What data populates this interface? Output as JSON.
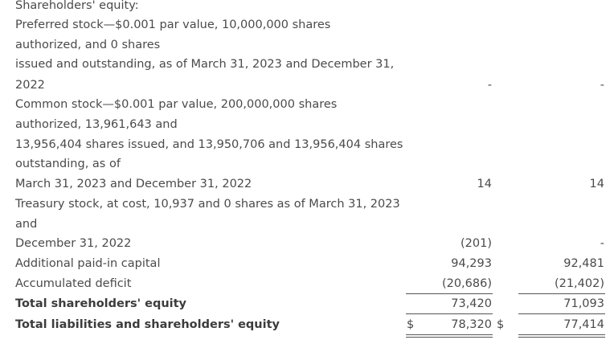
{
  "section_header": "Shareholders' equity:",
  "preferred": {
    "lines": [
      "Preferred stock—$0.001 par value, 10,000,000 shares",
      "authorized, and 0 shares",
      "issued and outstanding, as of March 31, 2023 and December 31,",
      "2022"
    ],
    "col1": "-",
    "col2": "-"
  },
  "common": {
    "lines": [
      "Common stock—$0.001 par value, 200,000,000 shares",
      "authorized, 13,961,643 and",
      "13,956,404 shares issued, and 13,950,706 and 13,956,404 shares",
      "outstanding, as of",
      "March 31, 2023 and December 31, 2022"
    ],
    "col1": "14",
    "col2": "14"
  },
  "treasury": {
    "lines": [
      "Treasury stock, at cost, 10,937 and 0 shares as of March 31, 2023",
      "and",
      "December 31, 2022"
    ],
    "col1": "(201)",
    "col2": "-"
  },
  "apic": {
    "label": "Additional paid-in capital",
    "col1": "94,293",
    "col2": "92,481"
  },
  "deficit": {
    "label": "Accumulated deficit",
    "col1": "(20,686)",
    "col2": "(21,402)"
  },
  "total_equity": {
    "label": "Total shareholders' equity",
    "col1": "73,420",
    "col2": "71,093"
  },
  "total_liab": {
    "label": "Total liabilities and shareholders' equity",
    "currency": "$",
    "col1": "78,320",
    "col2": "77,414"
  }
}
